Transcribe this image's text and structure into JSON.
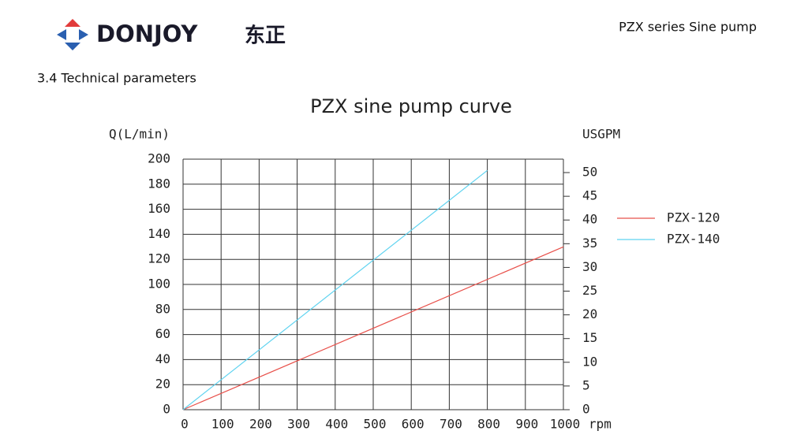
{
  "header": {
    "logo": "DONJOY",
    "logo_cn": "东正",
    "doc_title": "PZX series Sine pump",
    "section": "3.4 Technical parameters"
  },
  "chart_data": {
    "type": "line",
    "title": "PZX sine pump curve",
    "y_label": "Q(L/min)",
    "y2_label": "USGPM",
    "x_label": "rpm",
    "xlim": [
      0,
      1000
    ],
    "xticks": [
      0,
      100,
      200,
      300,
      400,
      500,
      600,
      700,
      800,
      900,
      1000
    ],
    "ylim": [
      0,
      200
    ],
    "yticks": [
      0,
      20,
      40,
      60,
      80,
      100,
      120,
      140,
      160,
      180,
      200
    ],
    "y2lim": [
      0,
      52.83
    ],
    "y2ticks": [
      0,
      5,
      10,
      15,
      20,
      25,
      30,
      35,
      40,
      45,
      50
    ],
    "grid": true,
    "series": [
      {
        "name": "PZX-120",
        "color": "#e8504a",
        "x": [
          0,
          1000
        ],
        "values": [
          0,
          130
        ]
      },
      {
        "name": "PZX-140",
        "color": "#5fd3f0",
        "x": [
          0,
          800
        ],
        "values": [
          0,
          191
        ]
      }
    ]
  }
}
